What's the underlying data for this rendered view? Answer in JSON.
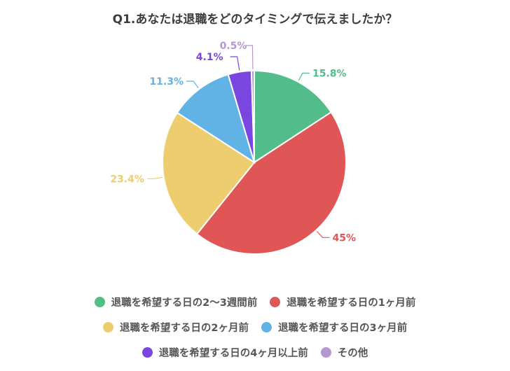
{
  "chart_data": {
    "type": "pie",
    "title": "Q1.あなたは退職をどのタイミングで伝えましたか？",
    "slices": [
      {
        "label": "退職を希望する日の2〜3週間前",
        "value": 15.8,
        "value_label": "15.8%",
        "color": "#52bd8a"
      },
      {
        "label": "退職を希望する日の1ヶ月前",
        "value": 45,
        "value_label": "45%",
        "color": "#e05555"
      },
      {
        "label": "退職を希望する日の2ヶ月前",
        "value": 23.4,
        "value_label": "23.4%",
        "color": "#edcd6d"
      },
      {
        "label": "退職を希望する日の3ヶ月前",
        "value": 11.3,
        "value_label": "11.3%",
        "color": "#62b3e5"
      },
      {
        "label": "退職を希望する日の4ヶ月以上前",
        "value": 4.1,
        "value_label": "4.1%",
        "color": "#7a46e0"
      },
      {
        "label": "その他",
        "value": 0.5,
        "value_label": "0.5%",
        "color": "#b597cf"
      }
    ],
    "start_angle": "12 o'clock",
    "direction": "clockwise",
    "legend_position": "bottom"
  },
  "legend_rows": [
    [
      0,
      1
    ],
    [
      2,
      3
    ],
    [
      4,
      5
    ]
  ]
}
